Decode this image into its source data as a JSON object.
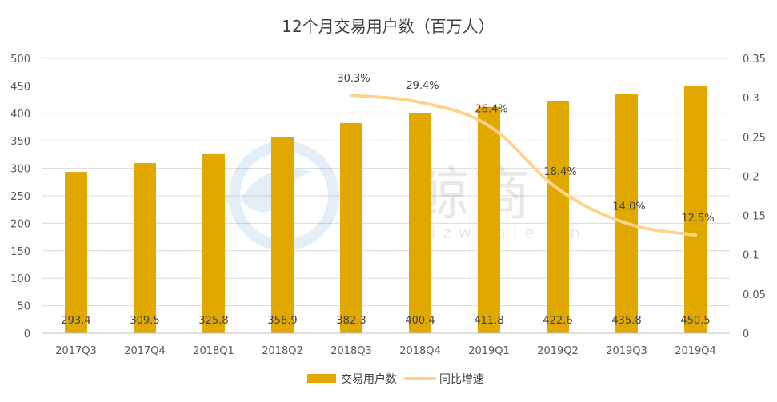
{
  "chart_data": {
    "type": "bar",
    "title": "12个月交易用户数（百万人）",
    "categories": [
      "2017Q3",
      "2017Q4",
      "2018Q1",
      "2018Q2",
      "2018Q3",
      "2018Q4",
      "2019Q1",
      "2019Q2",
      "2019Q3",
      "2019Q4"
    ],
    "series": [
      {
        "name": "交易用户数",
        "type": "bar",
        "axis": "left",
        "color": "#E1A800",
        "values": [
          293.4,
          309.5,
          325.8,
          356.9,
          382.3,
          400.4,
          411.8,
          422.6,
          435.8,
          450.5
        ],
        "labels": [
          "293.4",
          "309.5",
          "325.8",
          "356.9",
          "382.3",
          "400.4",
          "411.8",
          "422.6",
          "435.8",
          "450.5"
        ]
      },
      {
        "name": "同比增速",
        "type": "line",
        "axis": "right",
        "color": "#FFD38A",
        "values": [
          null,
          null,
          null,
          null,
          0.303,
          0.294,
          0.264,
          0.184,
          0.14,
          0.125
        ],
        "labels": [
          "",
          "",
          "",
          "",
          "30.3%",
          "29.4%",
          "26.4%",
          "18.4%",
          "14.0%",
          "12.5%"
        ]
      }
    ],
    "y_left": {
      "ylim": [
        0,
        500
      ],
      "ticks": [
        "0",
        "50",
        "100",
        "150",
        "200",
        "250",
        "300",
        "350",
        "400",
        "450",
        "500"
      ]
    },
    "y_right": {
      "ylim": [
        0,
        0.35
      ],
      "ticks": [
        "0",
        "0.05",
        "0.1",
        "0.15",
        "0.2",
        "0.25",
        "0.3",
        "0.35"
      ]
    },
    "grid": true,
    "legend_position": "bottom"
  },
  "watermark": {
    "brand_text": "鲸商",
    "domain_text": "bizwhale.cn"
  }
}
